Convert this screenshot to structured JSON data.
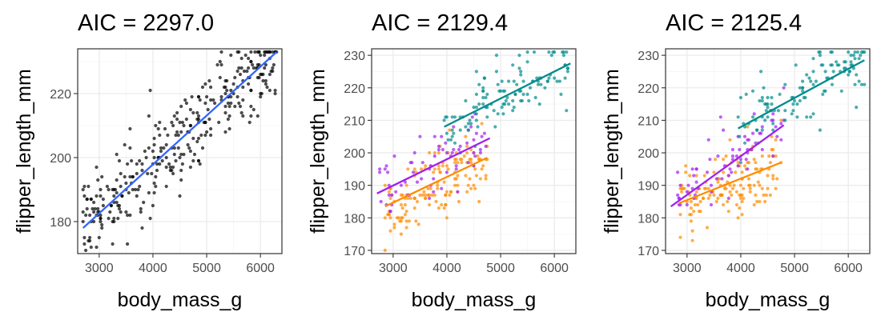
{
  "colors": {
    "background": "#ffffff",
    "grid": "#ebebeb",
    "border": "#333333",
    "point_black": "#000000",
    "fit_blue": "#3366ff",
    "orange": "#ff8c00",
    "purple": "#a020f0",
    "teal": "#008b8b"
  },
  "chart_data": [
    {
      "type": "scatter",
      "title": "AIC = 2297.0",
      "xlabel": "body_mass_g",
      "ylabel": "flipper_length_mm",
      "xlim": [
        2600,
        6400
      ],
      "ylim": [
        170,
        234
      ],
      "xticks": [
        3000,
        4000,
        5000,
        6000
      ],
      "yticks": [
        180,
        200,
        220
      ],
      "grid": true,
      "series": [
        {
          "color": "#000000",
          "n_points": 340,
          "cloud": {
            "x_from": 2700,
            "x_to": 6300,
            "slope": 0.0152,
            "intercept": 137.0,
            "spread": 6.5
          },
          "fit": {
            "x": [
              2700,
              6300
            ],
            "y": [
              178,
              233
            ],
            "color": "#3366ff"
          }
        }
      ]
    },
    {
      "type": "scatter",
      "title": "AIC = 2129.4",
      "xlabel": "body_mass_g",
      "ylabel": "flipper_length_mm",
      "xlim": [
        2600,
        6400
      ],
      "ylim": [
        169,
        232
      ],
      "xticks": [
        3000,
        4000,
        5000,
        6000
      ],
      "yticks": [
        170,
        180,
        190,
        200,
        210,
        220,
        230
      ],
      "grid": true,
      "series": [
        {
          "color": "#ff8c00",
          "n_points": 150,
          "cloud": {
            "x_from": 2850,
            "x_to": 4750,
            "slope": 0.008,
            "intercept": 160.0,
            "spread": 5.2
          },
          "fit": {
            "x": [
              2850,
              4750
            ],
            "y": [
              183.5,
              198.5
            ],
            "color": "#ff8c00"
          }
        },
        {
          "color": "#a020f0",
          "n_points": 68,
          "cloud": {
            "x_from": 2700,
            "x_to": 4800,
            "slope": 0.0082,
            "intercept": 165.0,
            "spread": 5.0
          },
          "fit": {
            "x": [
              2700,
              4800
            ],
            "y": [
              187.5,
              204.5
            ],
            "color": "#a020f0"
          }
        },
        {
          "color": "#008b8b",
          "n_points": 122,
          "cloud": {
            "x_from": 3950,
            "x_to": 6300,
            "slope": 0.0085,
            "intercept": 174.5,
            "spread": 4.8
          },
          "fit": {
            "x": [
              3950,
              6300
            ],
            "y": [
              208,
              227.5
            ],
            "color": "#008b8b"
          }
        }
      ]
    },
    {
      "type": "scatter",
      "title": "AIC = 2125.4",
      "xlabel": "body_mass_g",
      "ylabel": "flipper_length_mm",
      "xlim": [
        2600,
        6400
      ],
      "ylim": [
        169,
        232
      ],
      "xticks": [
        3000,
        4000,
        5000,
        6000
      ],
      "yticks": [
        170,
        180,
        190,
        200,
        210,
        220,
        230
      ],
      "grid": true,
      "series": [
        {
          "color": "#ff8c00",
          "n_points": 150,
          "cloud": {
            "x_from": 2850,
            "x_to": 4750,
            "slope": 0.0067,
            "intercept": 165.0,
            "spread": 5.2
          },
          "fit": {
            "x": [
              2850,
              4750
            ],
            "y": [
              184.5,
              197.0
            ],
            "color": "#ff8c00"
          }
        },
        {
          "color": "#a020f0",
          "n_points": 68,
          "cloud": {
            "x_from": 2700,
            "x_to": 4800,
            "slope": 0.0119,
            "intercept": 151.5,
            "spread": 5.0
          },
          "fit": {
            "x": [
              2700,
              4800
            ],
            "y": [
              183.5,
              208.5
            ],
            "color": "#a020f0"
          }
        },
        {
          "color": "#008b8b",
          "n_points": 122,
          "cloud": {
            "x_from": 3950,
            "x_to": 6300,
            "slope": 0.009,
            "intercept": 172.0,
            "spread": 4.8
          },
          "fit": {
            "x": [
              3950,
              6300
            ],
            "y": [
              207.5,
              228.5
            ],
            "color": "#008b8b"
          }
        }
      ]
    }
  ]
}
